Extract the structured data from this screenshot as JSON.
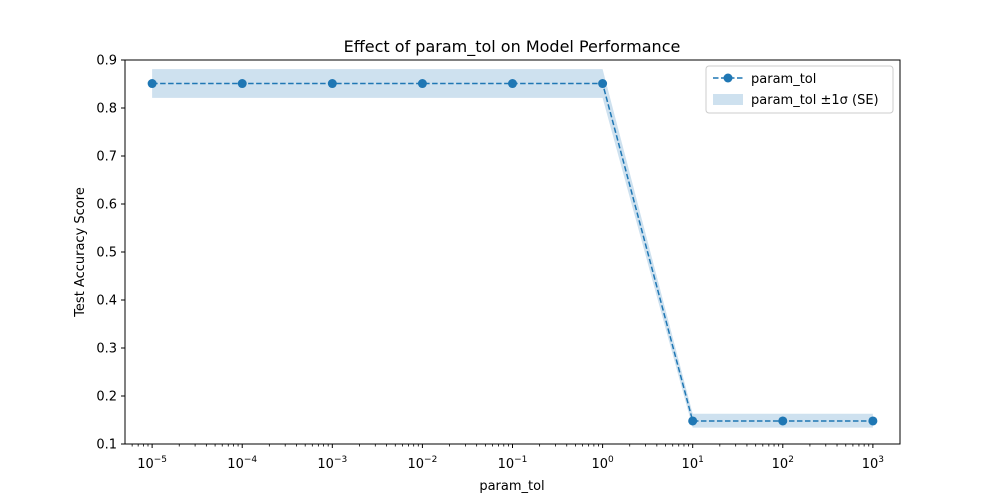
{
  "chart_data": {
    "type": "line",
    "title": "Effect of param_tol on Model Performance",
    "xlabel": "param_tol",
    "ylabel": "Test Accuracy Score",
    "xscale": "log",
    "xlim": [
      5e-06,
      2000
    ],
    "ylim": [
      0.1,
      0.9
    ],
    "yticks": [
      0.1,
      0.2,
      0.3,
      0.4,
      0.5,
      0.6,
      0.7,
      0.8,
      0.9
    ],
    "xticks_exponents": [
      -5,
      -4,
      -3,
      -2,
      -1,
      0,
      1,
      2,
      3
    ],
    "grid": false,
    "legend_position": "top-right",
    "legend": {
      "line_label": "param_tol",
      "band_label": "param_tol ±1σ (SE)"
    },
    "series": [
      {
        "name": "param_tol",
        "color": "#1f77b4",
        "line_style": "dashed",
        "marker": "circle",
        "x": [
          1e-05,
          0.0001,
          0.001,
          0.01,
          0.1,
          1,
          10,
          100,
          1000
        ],
        "y": [
          0.851,
          0.851,
          0.851,
          0.851,
          0.851,
          0.851,
          0.148,
          0.148,
          0.148
        ],
        "band_lower": [
          0.821,
          0.821,
          0.821,
          0.821,
          0.821,
          0.821,
          0.134,
          0.134,
          0.134
        ],
        "band_upper": [
          0.881,
          0.881,
          0.881,
          0.881,
          0.881,
          0.881,
          0.163,
          0.163,
          0.163
        ]
      }
    ]
  }
}
